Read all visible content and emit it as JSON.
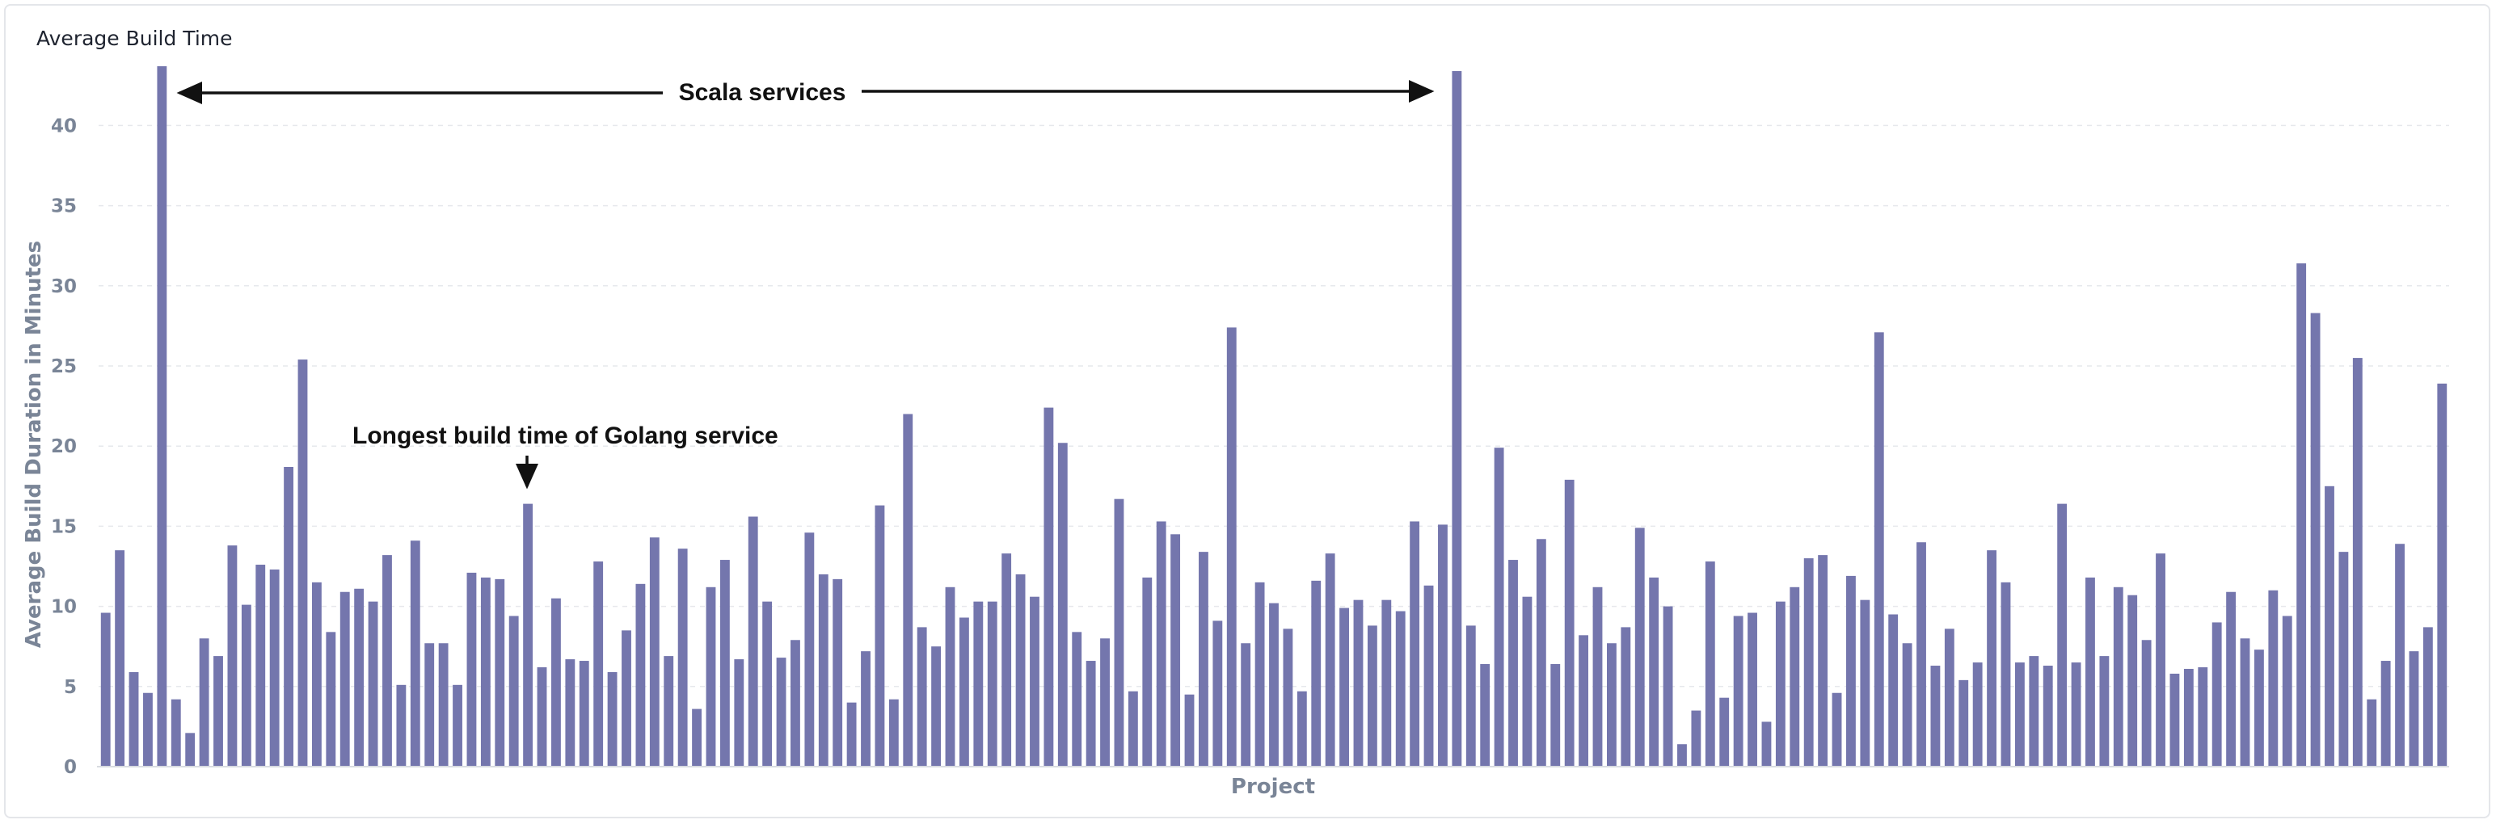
{
  "title": "Average Build Time",
  "chart_data": {
    "type": "bar",
    "title": "Average Build Time",
    "xlabel": "Project",
    "ylabel": "Average Build Duration in Minutes",
    "ylim": [
      0,
      43.8
    ],
    "yticks": [
      0,
      5,
      10,
      15,
      20,
      25,
      30,
      35,
      40
    ],
    "grid": true,
    "color": "#7476ad",
    "values": [
      9.6,
      13.5,
      5.9,
      4.6,
      43.7,
      4.2,
      2.1,
      8.0,
      6.9,
      13.8,
      10.1,
      12.6,
      12.3,
      18.7,
      25.4,
      11.5,
      8.4,
      10.9,
      11.1,
      10.3,
      13.2,
      5.1,
      14.1,
      7.7,
      7.7,
      5.1,
      12.1,
      11.8,
      11.7,
      9.4,
      16.4,
      6.2,
      10.5,
      6.7,
      6.6,
      12.8,
      5.9,
      8.5,
      11.4,
      14.3,
      6.9,
      13.6,
      3.6,
      11.2,
      12.9,
      6.7,
      15.6,
      10.3,
      6.8,
      7.9,
      14.6,
      12.0,
      11.7,
      4.0,
      7.2,
      16.3,
      4.2,
      22.0,
      8.7,
      7.5,
      11.2,
      9.3,
      10.3,
      10.3,
      13.3,
      12.0,
      10.6,
      22.4,
      20.2,
      8.4,
      6.6,
      8.0,
      16.7,
      4.7,
      11.8,
      15.3,
      14.5,
      4.5,
      13.4,
      9.1,
      27.4,
      7.7,
      11.5,
      10.2,
      8.6,
      4.7,
      11.6,
      13.3,
      9.9,
      10.4,
      8.8,
      10.4,
      9.7,
      15.3,
      11.3,
      15.1,
      43.4,
      8.8,
      6.4,
      19.9,
      12.9,
      10.6,
      14.2,
      6.4,
      17.9,
      8.2,
      11.2,
      7.7,
      8.7,
      14.9,
      11.8,
      10.0,
      1.4,
      3.5,
      12.8,
      4.3,
      9.4,
      9.6,
      2.8,
      10.3,
      11.2,
      13.0,
      13.2,
      4.6,
      11.9,
      10.4,
      27.1,
      9.5,
      7.7,
      14.0,
      6.3,
      8.6,
      5.4,
      6.5,
      13.5,
      11.5,
      6.5,
      6.9,
      6.3,
      16.4,
      6.5,
      11.8,
      6.9,
      11.2,
      10.7,
      7.9,
      13.3,
      5.8,
      6.1,
      6.2,
      9.0,
      10.9,
      8.0,
      7.3,
      11.0,
      9.4,
      31.4,
      28.3,
      17.5,
      13.4,
      25.5,
      4.2,
      6.6,
      13.9,
      7.2,
      8.7,
      23.9
    ]
  },
  "annotations": {
    "scala": "Scala services",
    "golang": "Longest build time of Golang service"
  }
}
